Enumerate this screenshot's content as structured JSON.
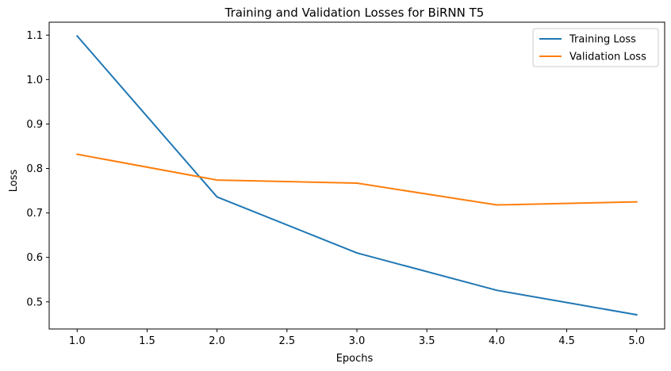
{
  "chart_data": {
    "type": "line",
    "title": "Training and Validation Losses for BiRNN T5",
    "xlabel": "Epochs",
    "ylabel": "Loss",
    "x": [
      1.0,
      2.0,
      3.0,
      4.0,
      5.0
    ],
    "series": [
      {
        "name": "Training Loss",
        "color": "#1f77b4",
        "values": [
          1.098,
          0.736,
          0.61,
          0.526,
          0.471
        ]
      },
      {
        "name": "Validation Loss",
        "color": "#ff7f0e",
        "values": [
          0.832,
          0.774,
          0.767,
          0.718,
          0.725
        ]
      }
    ],
    "xlim": [
      0.8,
      5.2
    ],
    "ylim": [
      0.439,
      1.129
    ],
    "xticks": [
      "1.0",
      "1.5",
      "2.0",
      "2.5",
      "3.0",
      "3.5",
      "4.0",
      "4.5",
      "5.0"
    ],
    "yticks": [
      "0.5",
      "0.6",
      "0.7",
      "0.8",
      "0.9",
      "1.0",
      "1.1"
    ],
    "grid": false,
    "legend_position": "top-right"
  }
}
